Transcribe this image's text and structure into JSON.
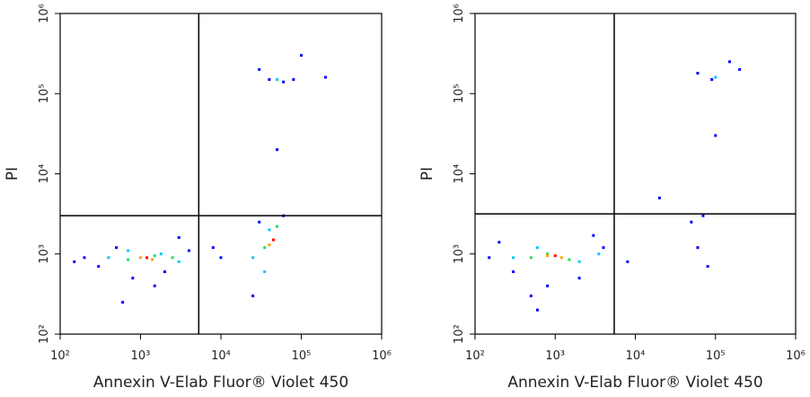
{
  "chart_data": [
    {
      "type": "scatter",
      "xlabel": "Annexin V-Elab Fluor® Violet 450",
      "ylabel": "PI",
      "log_scale": true,
      "xlim": [
        100,
        1000000
      ],
      "ylim": [
        100,
        1000000
      ],
      "xticks": [
        {
          "value": 100,
          "label": "10²"
        },
        {
          "value": 1000,
          "label": "10³"
        },
        {
          "value": 10000,
          "label": "10⁴"
        },
        {
          "value": 100000,
          "label": "10⁵"
        },
        {
          "value": 1000000,
          "label": "10⁶"
        }
      ],
      "yticks": [
        {
          "value": 100,
          "label": "10²"
        },
        {
          "value": 1000,
          "label": "10³"
        },
        {
          "value": 10000,
          "label": "10⁴"
        },
        {
          "value": 100000,
          "label": "10⁵"
        },
        {
          "value": 1000000,
          "label": "10⁶"
        }
      ],
      "gates": {
        "x": 5300,
        "y": 3000
      },
      "series": [
        {
          "color": "#0000ff",
          "x": [
            300,
            500,
            800,
            200,
            2000,
            4000,
            3000,
            150,
            1500,
            25000,
            30000,
            60000,
            40000,
            60000,
            80000,
            30000,
            100000,
            50000,
            200000,
            8000,
            10000,
            600
          ],
          "y": [
            700,
            1200,
            500,
            900,
            600,
            1100,
            1600,
            800,
            400,
            300,
            2500,
            3000,
            150000,
            140000,
            150000,
            200000,
            300000,
            20000,
            160000,
            1200,
            900,
            250
          ]
        },
        {
          "color": "#00c8ff",
          "x": [
            400,
            700,
            1800,
            3000,
            25000,
            40000,
            50000,
            35000
          ],
          "y": [
            900,
            1100,
            1000,
            800,
            900,
            2000,
            150000,
            600
          ]
        },
        {
          "color": "#20e060",
          "x": [
            700,
            1500,
            2500,
            35000,
            50000
          ],
          "y": [
            850,
            950,
            900,
            1200,
            2200
          ]
        },
        {
          "color": "#ffa000",
          "x": [
            1000,
            1400,
            40000
          ],
          "y": [
            900,
            850,
            1300
          ]
        },
        {
          "color": "#ff0000",
          "x": [
            1200,
            45000
          ],
          "y": [
            900,
            1500
          ]
        }
      ]
    },
    {
      "type": "scatter",
      "xlabel": "Annexin V-Elab Fluor® Violet 450",
      "ylabel": "PI",
      "log_scale": true,
      "xlim": [
        100,
        1000000
      ],
      "ylim": [
        100,
        1000000
      ],
      "xticks": [
        {
          "value": 100,
          "label": "10²"
        },
        {
          "value": 1000,
          "label": "10³"
        },
        {
          "value": 10000,
          "label": "10⁴"
        },
        {
          "value": 100000,
          "label": "10⁵"
        },
        {
          "value": 1000000,
          "label": "10⁶"
        }
      ],
      "yticks": [
        {
          "value": 100,
          "label": "10²"
        },
        {
          "value": 1000,
          "label": "10³"
        },
        {
          "value": 10000,
          "label": "10⁴"
        },
        {
          "value": 100000,
          "label": "10⁵"
        },
        {
          "value": 1000000,
          "label": "10⁶"
        }
      ],
      "gates": {
        "x": 5450,
        "y": 3160
      },
      "series": [
        {
          "color": "#0000ff",
          "x": [
            150,
            300,
            500,
            800,
            2000,
            4000,
            3000,
            200,
            8000,
            60000,
            80000,
            50000,
            90000,
            60000,
            150000,
            200000,
            100000,
            20000,
            600,
            70000
          ],
          "y": [
            900,
            600,
            300,
            400,
            500,
            1200,
            1700,
            1400,
            800,
            1200,
            700,
            2500,
            150000,
            180000,
            250000,
            200000,
            30000,
            5000,
            200,
            3000
          ]
        },
        {
          "color": "#00c8ff",
          "x": [
            300,
            600,
            2000,
            3500,
            100000
          ],
          "y": [
            900,
            1200,
            800,
            1000,
            160000
          ]
        },
        {
          "color": "#20e060",
          "x": [
            500,
            800,
            1500
          ],
          "y": [
            900,
            1000,
            850
          ]
        },
        {
          "color": "#ffa000",
          "x": [
            800,
            1200
          ],
          "y": [
            950,
            900
          ]
        },
        {
          "color": "#ff0000",
          "x": [
            1000
          ],
          "y": [
            950
          ]
        }
      ]
    }
  ]
}
